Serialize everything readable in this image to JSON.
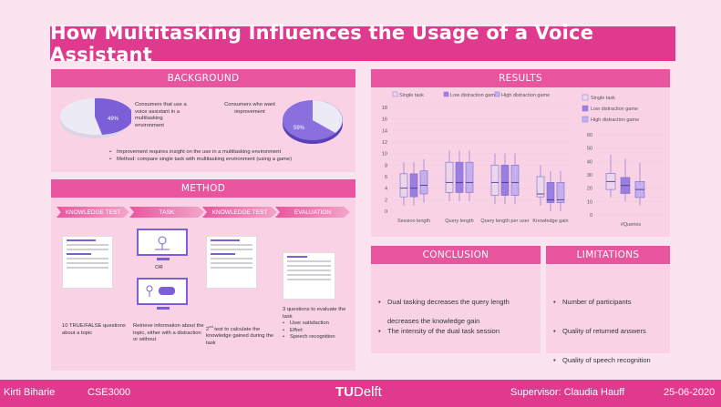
{
  "title": "How Multitasking Influences the Usage of a Voice Assistant",
  "background": {
    "header": "BACKGROUND",
    "pie1_label": "49%",
    "pie1_text": "Consumers that use a voice assistant in a multitasking environment",
    "pie2_label": "59%",
    "pie2_text": "Consumers who want improvement",
    "bullets": [
      "Improvement requires insight on the use in a multitasking environment",
      "Method: compare single task with multitasking environment (using a game)"
    ]
  },
  "method": {
    "header": "METHOD",
    "steps": [
      "KNOWLEDGE TEST",
      "TASK",
      "KNOWLEDGE TEST",
      "EVALUATION"
    ],
    "or": "OR",
    "col1": "10 TRUE/FALSE questions about a topic",
    "col2": "Retrieve information about the topic, either with a distraction or without",
    "col3_sup": "nd",
    "col3_num": "2",
    "col3": " test to calculate the knowledge gained during the task",
    "col4": "3 questions to evaluate the task",
    "col4_bullets": [
      "User satisfaction",
      "Effort",
      "Speech recognition"
    ]
  },
  "results": {
    "header": "RESULTS",
    "legend": [
      "Single task",
      "Low distraction game",
      "High distraction game"
    ],
    "left_yticks": [
      "18",
      "16",
      "14",
      "12",
      "10",
      "8",
      "6",
      "4",
      "2",
      "0"
    ],
    "right_yticks": [
      "60",
      "50",
      "40",
      "30",
      "20",
      "10",
      "0"
    ],
    "xlabels": [
      "Session length",
      "Query length",
      "Query length per user",
      "Knowledge gain"
    ],
    "right_xlabel": "#Queries",
    "colors": {
      "single": "#ebd6ec",
      "low": "#9b7fe0",
      "high": "#c4b0ee"
    }
  },
  "chart_data": {
    "type": "box",
    "ylim": [
      0,
      18
    ],
    "categories": [
      "Session length",
      "Query length",
      "Query length per user",
      "Knowledge gain"
    ],
    "series": [
      {
        "name": "Single task",
        "medians": [
          4,
          5,
          5,
          3
        ]
      },
      {
        "name": "Low distraction game",
        "medians": [
          4,
          5,
          5,
          2
        ]
      },
      {
        "name": "High distraction game",
        "medians": [
          4.5,
          5,
          5,
          2
        ]
      }
    ],
    "right": {
      "categories": [
        "#Queries"
      ],
      "ylim": [
        0,
        60
      ],
      "medians": [
        25,
        22,
        19
      ]
    }
  },
  "conclusion": {
    "header": "CONCLUSION",
    "items": [
      "Dual tasking decreases the query length",
      "The intensity of the dual task session",
      "decreases the knowledge gain"
    ]
  },
  "limitations": {
    "header": "LIMITATIONS",
    "items": [
      "Number of participants",
      "Quality of returned answers",
      "Quality of speech recognition"
    ]
  },
  "footer": {
    "author": "Kirti Biharie",
    "course": "CSE3000",
    "logo_tu": "TU",
    "logo_delft": "Delft",
    "supervisor": "Supervisor: Claudia Hauff",
    "date": "25-06-2020"
  }
}
